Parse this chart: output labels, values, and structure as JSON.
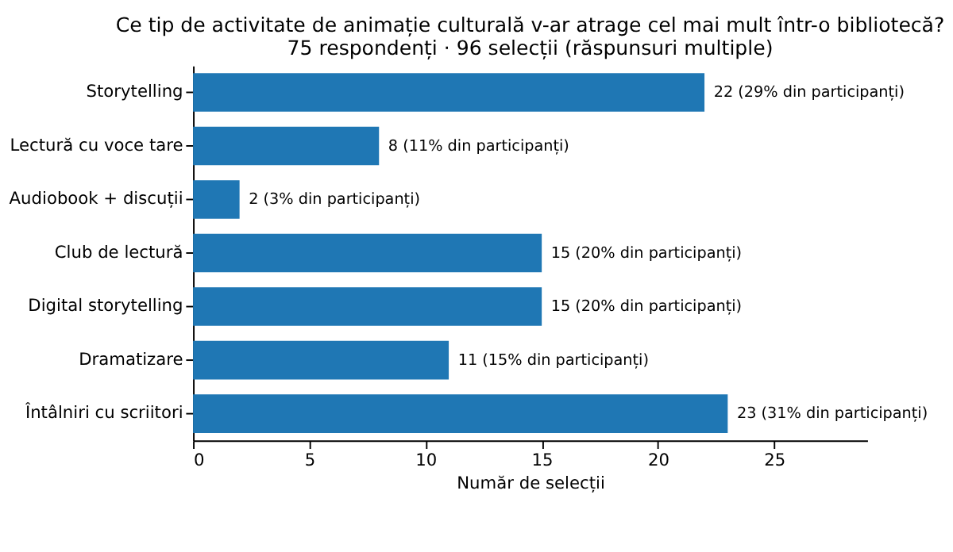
{
  "chart_data": {
    "type": "bar",
    "orientation": "horizontal",
    "title": "Ce tip de activitate de animație culturală v-ar atrage cel mai mult într-o bibliotecă?",
    "subtitle": "75 respondenți · 96 selecții (răspunsuri multiple)",
    "xlabel": "Număr de selecții",
    "categories": [
      "Storytelling",
      "Lectură cu voce tare",
      "Audiobook + discuții",
      "Club de lectură",
      "Digital storytelling",
      "Dramatizare",
      "Întâlniri cu scriitori"
    ],
    "values": [
      22,
      8,
      2,
      15,
      15,
      11,
      23
    ],
    "value_labels": [
      "22 (29% din participanți)",
      "8 (11% din participanți)",
      "2 (3% din participanți)",
      "15 (20% din participanți)",
      "15 (20% din participanți)",
      "11 (15% din participanți)",
      "23 (31% din participanți)"
    ],
    "color": "#1f77b4",
    "xlim": [
      0,
      29
    ],
    "xticks": [
      0,
      5,
      10,
      15,
      20,
      25
    ],
    "grid": false
  }
}
